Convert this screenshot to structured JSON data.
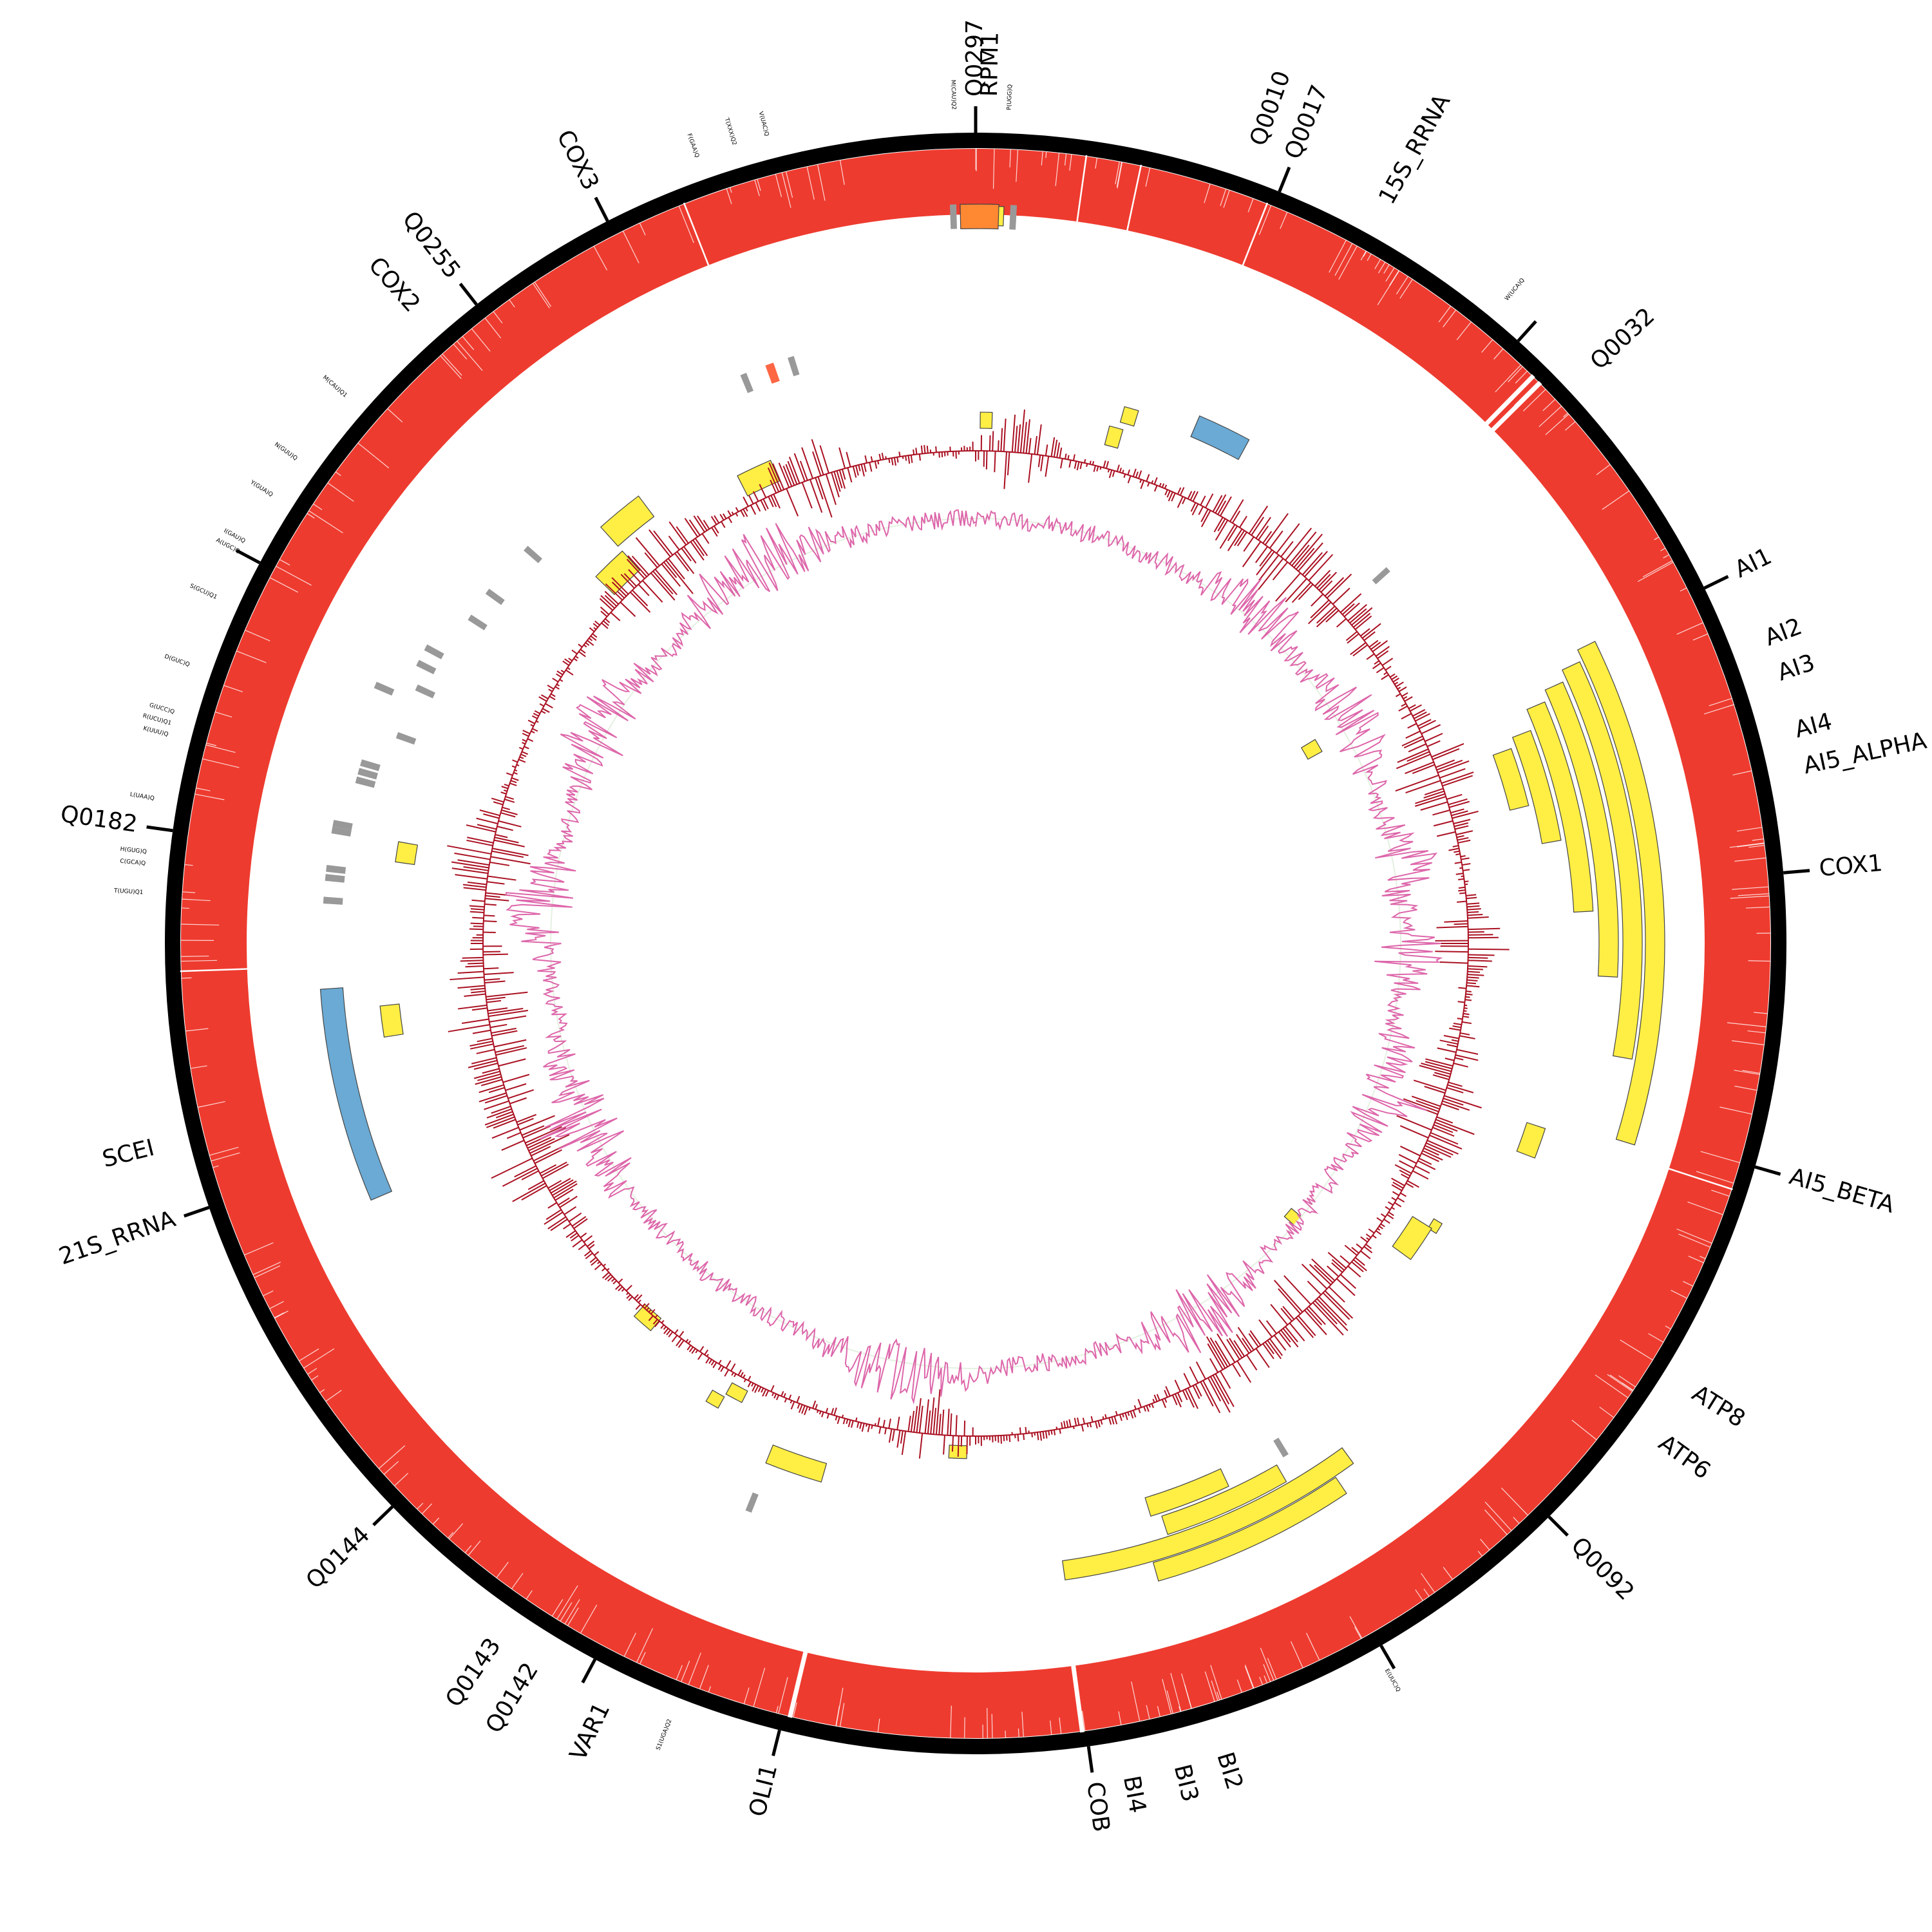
{
  "colors": {
    "outer_ring": "#000000",
    "coverage": "#ee3b2f",
    "orf": "#ffee44",
    "rrna": "#6aaad4",
    "trna": "#999999",
    "ori": "#ff8833",
    "ncrna": "#ff6644",
    "gc_line": "#aa1122",
    "skew_line": "#dd66aa",
    "skew_fill": "#e4f1e1"
  },
  "genes": [
    {
      "label": "Q0297",
      "angle": 0.0
    },
    {
      "label": "RPM1",
      "angle": 1.0
    },
    {
      "label": "Q0010",
      "angle": 19.5
    },
    {
      "label": "Q0017",
      "angle": 22.0
    },
    {
      "label": "15S_RRNA",
      "angle": 29.0
    },
    {
      "label": "Q0032",
      "angle": 47.0
    },
    {
      "label": "AI1",
      "angle": 64.0
    },
    {
      "label": "AI2",
      "angle": 69.0
    },
    {
      "label": "AI3",
      "angle": 71.5
    },
    {
      "label": "AI4",
      "angle": 75.5
    },
    {
      "label": "AI5_ALPHA",
      "angle": 78.0
    },
    {
      "label": "COX1",
      "angle": 85.0
    },
    {
      "label": "AI5_BETA",
      "angle": 106.0
    },
    {
      "label": "ATP8",
      "angle": 122.0
    },
    {
      "label": "ATP6",
      "angle": 126.0
    },
    {
      "label": "Q0092",
      "angle": 135.0
    },
    {
      "label": "BI2",
      "angle": 163.0
    },
    {
      "label": "BI3",
      "angle": 166.0
    },
    {
      "label": "BI4",
      "angle": 169.5
    },
    {
      "label": "COB",
      "angle": 172.0
    },
    {
      "label": "OLI1",
      "angle": 194.0
    },
    {
      "label": "VAR1",
      "angle": 206.0
    },
    {
      "label": "Q0142",
      "angle": 211.5
    },
    {
      "label": "Q0143",
      "angle": 214.5
    },
    {
      "label": "Q0144",
      "angle": 226.0
    },
    {
      "label": "21S_RRNA",
      "angle": 251.0
    },
    {
      "label": "SCEI",
      "angle": 256.0
    },
    {
      "label": "Q0182",
      "angle": 278.0
    },
    {
      "label": "COX2",
      "angle": 318.5
    },
    {
      "label": "Q0255",
      "angle": 322.0
    },
    {
      "label": "COX3",
      "angle": 333.0
    }
  ],
  "trnas": [
    {
      "label": "M(CAU)Q2",
      "angle": 358.5
    },
    {
      "label": "P(UGG)Q",
      "angle": 2.3
    },
    {
      "label": "W(UCA)Q",
      "angle": 39.5
    },
    {
      "label": "E(UUC)Q",
      "angle": 150.5
    },
    {
      "label": "S1(UGA)Q2",
      "angle": 201.5
    },
    {
      "label": "T(UGU)Q1",
      "angle": 273.5
    },
    {
      "label": "C(GCA)Q",
      "angle": 275.5
    },
    {
      "label": "H(GUG)Q",
      "angle": 276.3
    },
    {
      "label": "L(UAA)Q",
      "angle": 280.0
    },
    {
      "label": "K(UUU)Q",
      "angle": 284.5
    },
    {
      "label": "R(UCU)Q1",
      "angle": 285.3
    },
    {
      "label": "G(UCC)Q",
      "angle": 286.1
    },
    {
      "label": "D(GUC)Q",
      "angle": 289.5
    },
    {
      "label": "S(GCU)Q1",
      "angle": 294.5
    },
    {
      "label": "A(UGC)Q",
      "angle": 298.0
    },
    {
      "label": "I(GAU)Q",
      "angle": 298.8
    },
    {
      "label": "Y(GUA)Q",
      "angle": 302.5
    },
    {
      "label": "N(GUU)Q",
      "angle": 305.5
    },
    {
      "label": "M(CAU)Q1",
      "angle": 311.0
    },
    {
      "label": "F(GAA)Q",
      "angle": 340.5
    },
    {
      "label": "T(XXX)Q2",
      "angle": 343.2
    },
    {
      "label": "V(UAC)Q",
      "angle": 345.5
    }
  ],
  "ticks": [
    0,
    22,
    42,
    64,
    85,
    106,
    135,
    150,
    172,
    194,
    208,
    226,
    251,
    278,
    298,
    322,
    333
  ],
  "features": [
    {
      "type": "orf",
      "start": 64,
      "end": 107,
      "r1": 1040,
      "r2": 1070
    },
    {
      "type": "orf",
      "start": 65,
      "end": 100,
      "r1": 1005,
      "r2": 1035
    },
    {
      "type": "orf",
      "start": 66,
      "end": 93,
      "r1": 968,
      "r2": 998
    },
    {
      "type": "orf",
      "start": 67,
      "end": 87,
      "r1": 930,
      "r2": 960
    },
    {
      "type": "orf",
      "start": 69,
      "end": 80,
      "r1": 893,
      "r2": 923
    },
    {
      "type": "orf",
      "start": 70,
      "end": 76,
      "r1": 855,
      "r2": 885
    },
    {
      "type": "orf",
      "start": 0,
      "end": 2.2,
      "r1": 1115,
      "r2": 1145
    },
    {
      "type": "orf",
      "start": 0.5,
      "end": 1.8,
      "r1": 800,
      "r2": 825
    },
    {
      "type": "orf",
      "start": 14.5,
      "end": 16,
      "r1": 800,
      "r2": 830
    },
    {
      "type": "orf",
      "start": 15.5,
      "end": 17,
      "r1": 840,
      "r2": 865
    },
    {
      "type": "orf",
      "start": 59,
      "end": 61,
      "r1": 590,
      "r2": 615
    },
    {
      "type": "orf",
      "start": 108,
      "end": 111,
      "r1": 900,
      "r2": 930
    },
    {
      "type": "orf",
      "start": 121,
      "end": 122.2,
      "r1": 830,
      "r2": 845
    },
    {
      "type": "orf",
      "start": 122,
      "end": 126,
      "r1": 800,
      "r2": 835
    },
    {
      "type": "orf",
      "start": 130,
      "end": 131.5,
      "r1": 640,
      "r2": 660
    },
    {
      "type": "orf",
      "start": 146,
      "end": 164,
      "r1": 1000,
      "r2": 1030
    },
    {
      "type": "orf",
      "start": 144,
      "end": 172,
      "r1": 968,
      "r2": 998
    },
    {
      "type": "orf",
      "start": 150,
      "end": 162,
      "r1": 935,
      "r2": 965
    },
    {
      "type": "orf",
      "start": 155,
      "end": 163,
      "r1": 900,
      "r2": 930
    },
    {
      "type": "orf",
      "start": 181,
      "end": 183,
      "r1": 780,
      "r2": 800
    },
    {
      "type": "orf",
      "start": 196,
      "end": 202,
      "r1": 840,
      "r2": 870
    },
    {
      "type": "orf",
      "start": 207,
      "end": 209,
      "r1": 780,
      "r2": 800
    },
    {
      "type": "orf",
      "start": 209,
      "end": 210.5,
      "r1": 805,
      "r2": 825
    },
    {
      "type": "orf",
      "start": 220,
      "end": 222.5,
      "r1": 760,
      "r2": 785
    },
    {
      "type": "orf",
      "start": 261,
      "end": 264,
      "r1": 900,
      "r2": 930
    },
    {
      "type": "orf",
      "start": 278,
      "end": 280,
      "r1": 880,
      "r2": 910
    },
    {
      "type": "orf",
      "start": 314,
      "end": 318,
      "r1": 780,
      "r2": 820
    },
    {
      "type": "orf",
      "start": 318,
      "end": 323,
      "r1": 830,
      "r2": 870
    },
    {
      "type": "orf",
      "start": 333,
      "end": 337,
      "r1": 780,
      "r2": 815
    },
    {
      "type": "rrna",
      "start": 23,
      "end": 28.5,
      "r1": 855,
      "r2": 890
    },
    {
      "type": "rrna",
      "start": 247,
      "end": 266,
      "r1": 985,
      "r2": 1020
    },
    {
      "type": "ori",
      "start": 358.8,
      "end": 1.8,
      "r1": 1110,
      "r2": 1148
    },
    {
      "type": "ncrna",
      "start": 340,
      "end": 340.8,
      "r1": 925,
      "r2": 955
    },
    {
      "type": "trna",
      "start": 358.0,
      "end": 358.5,
      "r1": 1110,
      "r2": 1148
    },
    {
      "type": "trna",
      "start": 2.7,
      "end": 3.2,
      "r1": 1110,
      "r2": 1148
    },
    {
      "type": "trna",
      "start": 337.5,
      "end": 338.1,
      "r1": 925,
      "r2": 955
    },
    {
      "type": "trna",
      "start": 342.2,
      "end": 342.8,
      "r1": 925,
      "r2": 955
    },
    {
      "type": "trna",
      "start": 47.5,
      "end": 48.1,
      "r1": 835,
      "r2": 865
    },
    {
      "type": "trna",
      "start": 148.5,
      "end": 149.1,
      "r1": 900,
      "r2": 930
    },
    {
      "type": "trna",
      "start": 201.5,
      "end": 202.1,
      "r1": 920,
      "r2": 950
    },
    {
      "type": "trna",
      "start": 273.5,
      "end": 274.1,
      "r1": 985,
      "r2": 1015
    },
    {
      "type": "trna",
      "start": 275.5,
      "end": 276.1,
      "r1": 985,
      "r2": 1015
    },
    {
      "type": "trna",
      "start": 276.3,
      "end": 276.9,
      "r1": 985,
      "r2": 1015
    },
    {
      "type": "trna",
      "start": 279.7,
      "end": 280.3,
      "r1": 985,
      "r2": 1015
    },
    {
      "type": "trna",
      "start": 280.3,
      "end": 280.9,
      "r1": 985,
      "r2": 1015
    },
    {
      "type": "trna",
      "start": 284.5,
      "end": 285.1,
      "r1": 965,
      "r2": 995
    },
    {
      "type": "trna",
      "start": 285.3,
      "end": 285.9,
      "r1": 965,
      "r2": 995
    },
    {
      "type": "trna",
      "start": 286.1,
      "end": 286.7,
      "r1": 965,
      "r2": 995
    },
    {
      "type": "trna",
      "start": 289.5,
      "end": 290.1,
      "r1": 925,
      "r2": 955
    },
    {
      "type": "trna",
      "start": 294.3,
      "end": 294.9,
      "r1": 925,
      "r2": 955
    },
    {
      "type": "trna",
      "start": 293.0,
      "end": 293.6,
      "r1": 985,
      "r2": 1015
    },
    {
      "type": "trna",
      "start": 296.4,
      "end": 297.0,
      "r1": 940,
      "r2": 970
    },
    {
      "type": "trna",
      "start": 298.0,
      "end": 298.6,
      "r1": 940,
      "r2": 970
    },
    {
      "type": "trna",
      "start": 302.5,
      "end": 303.1,
      "r1": 905,
      "r2": 935
    },
    {
      "type": "trna",
      "start": 305.5,
      "end": 306.1,
      "r1": 905,
      "r2": 935
    },
    {
      "type": "trna",
      "start": 311.0,
      "end": 311.6,
      "r1": 900,
      "r2": 930
    }
  ],
  "coverage_gaps": [
    44.5,
    45.2,
    172.3,
    193.5,
    12.0,
    21.5,
    338.5,
    8.0,
    108.0,
    268.0
  ]
}
